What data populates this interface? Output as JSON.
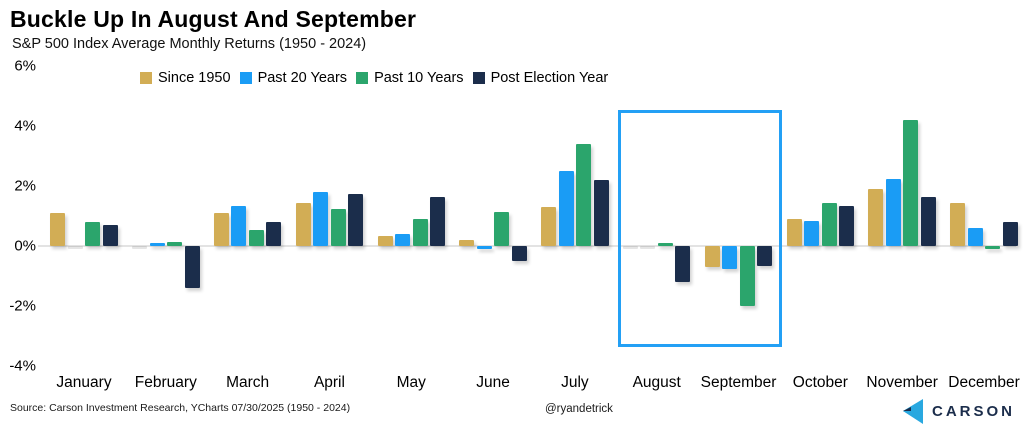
{
  "chart_data": {
    "type": "bar",
    "title": "Buckle Up In August And September",
    "subtitle": "S&P 500 Index Average Monthly Returns (1950 - 2024)",
    "categories": [
      "January",
      "February",
      "March",
      "April",
      "May",
      "June",
      "July",
      "August",
      "September",
      "October",
      "November",
      "December"
    ],
    "series": [
      {
        "name": "Since 1950",
        "color": "#d2ad55",
        "values": [
          1.1,
          0.0,
          1.1,
          1.45,
          0.35,
          0.2,
          1.3,
          0.0,
          -0.7,
          0.9,
          1.9,
          1.45
        ]
      },
      {
        "name": "Past 20 Years",
        "color": "#1a9cf5",
        "values": [
          0.0,
          0.1,
          1.35,
          1.8,
          0.4,
          -0.1,
          2.5,
          0.0,
          -0.75,
          0.85,
          2.25,
          0.6
        ]
      },
      {
        "name": "Past 10 Years",
        "color": "#2ba56c",
        "values": [
          0.8,
          0.15,
          0.55,
          1.25,
          0.9,
          1.15,
          3.4,
          0.1,
          -2.0,
          1.45,
          4.2,
          -0.1
        ]
      },
      {
        "name": "Post Election Year",
        "color": "#1b2d4b",
        "values": [
          0.7,
          -1.4,
          0.8,
          1.75,
          1.65,
          -0.5,
          2.2,
          -1.2,
          -0.65,
          1.35,
          1.65,
          0.8
        ]
      }
    ],
    "y_ticks": [
      {
        "label": "6%",
        "value": 6
      },
      {
        "label": "4%",
        "value": 4
      },
      {
        "label": "2%",
        "value": 2
      },
      {
        "label": "0%",
        "value": 0
      },
      {
        "label": "-2%",
        "value": -2
      },
      {
        "label": "-4%",
        "value": -4
      }
    ],
    "ylim": [
      -4,
      6
    ],
    "grid": "zero-line-only",
    "legend_position": "top",
    "highlight": {
      "months": [
        "August",
        "September"
      ],
      "border_color": "#23a0f5"
    }
  },
  "footer": {
    "source": "Source: Carson Investment Research, YCharts 07/30/2025 (1950 - 2024)",
    "handle": "@ryandetrick",
    "logo_text": "CARSON",
    "logo_colors": {
      "light_blue": "#29a8e0",
      "navy": "#1b2d4b"
    }
  }
}
